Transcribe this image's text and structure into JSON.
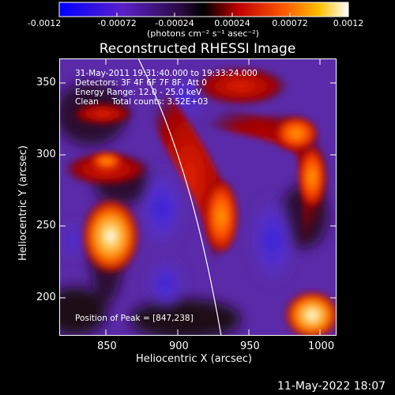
{
  "colorbar": {
    "ticks": [
      "-0.0012",
      "-0.00072",
      "-0.00024",
      "0.00024",
      "0.00072",
      "0.0012"
    ],
    "unit_label": "(photons cm⁻² s⁻¹ asec⁻²)",
    "range": [
      -0.0012,
      0.0012
    ]
  },
  "plot": {
    "title": "Reconstructed RHESSI Image",
    "info_lines": [
      "31-May-2011 19:31:40.000 to 19:33:24.000",
      "Detectors: 3F 4F 6F 7F 8F, Att 0",
      "Energy Range: 12.0 - 25.0 keV",
      "Clean     Total counts: 3.52E+03"
    ],
    "peak_label": "Position of Peak = [847,238]",
    "xlabel": "Heliocentric X (arcsec)",
    "ylabel": "Heliocentric Y (arcsec)",
    "xticks": [
      "850",
      "900",
      "950",
      "1000"
    ],
    "yticks": [
      "200",
      "250",
      "300",
      "350"
    ],
    "xlim": [
      817,
      1027
    ],
    "ylim": [
      173,
      373
    ]
  },
  "footer": {
    "datestamp": "11-May-2022 18:07"
  }
}
